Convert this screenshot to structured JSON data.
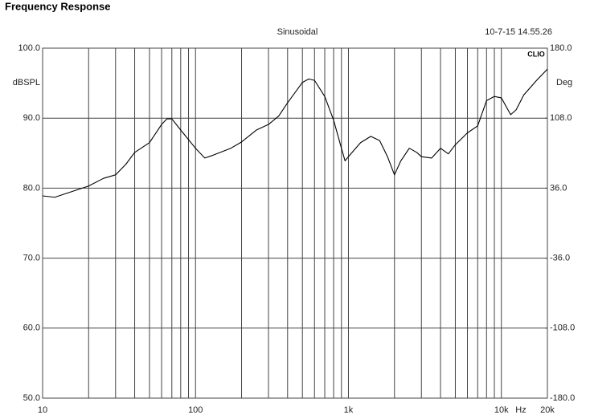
{
  "chart_data": {
    "type": "line",
    "title": "Frequency Response",
    "subtitle": "Sinusoidal",
    "timestamp": "10-7-15 14.55.26",
    "brand": "CLIO",
    "y_label": "dBSPL",
    "y2_label": "Deg",
    "x_unit": "Hz",
    "log_x": true,
    "grid": true,
    "xlim": [
      10,
      20000
    ],
    "ylim": [
      50,
      100
    ],
    "y2lim": [
      -180,
      180
    ],
    "xticks": [
      10,
      100,
      {
        "value": 1000,
        "label": "1k"
      },
      {
        "value": 10000,
        "label": "10k"
      },
      {
        "value": 20000,
        "label": "20k"
      }
    ],
    "xminor": [
      20,
      30,
      40,
      50,
      60,
      70,
      80,
      90,
      200,
      300,
      400,
      500,
      600,
      700,
      800,
      900,
      2000,
      3000,
      4000,
      5000,
      6000,
      7000,
      8000,
      9000
    ],
    "yticks": [
      {
        "value": 50,
        "label": "50.0"
      },
      {
        "value": 60,
        "label": "60.0"
      },
      {
        "value": 70,
        "label": "70.0"
      },
      {
        "value": 80,
        "label": "80.0"
      },
      {
        "value": 90,
        "label": "90.0"
      },
      {
        "value": 100,
        "label": "100.0"
      }
    ],
    "y2ticks": [
      {
        "value": -180,
        "label": "-180.0"
      },
      {
        "value": -108,
        "label": "-108.0"
      },
      {
        "value": -36,
        "label": "-36.0"
      },
      {
        "value": 36,
        "label": "36.0"
      },
      {
        "value": 108,
        "label": "108.0"
      },
      {
        "value": 180,
        "label": "180.0"
      }
    ],
    "x": [
      10,
      12,
      15,
      20,
      25,
      30,
      35,
      40,
      50,
      60,
      65,
      70,
      80,
      100,
      115,
      130,
      170,
      200,
      250,
      300,
      350,
      400,
      500,
      550,
      600,
      700,
      800,
      900,
      950,
      1000,
      1200,
      1400,
      1600,
      1800,
      2000,
      2200,
      2500,
      2800,
      3000,
      3500,
      4000,
      4500,
      5000,
      6000,
      7000,
      8000,
      9000,
      10000,
      11500,
      12500,
      14000,
      17000,
      20000
    ],
    "series": [
      {
        "name": "SPL",
        "color": "#000000",
        "values": [
          78.9,
          78.7,
          79.4,
          80.3,
          81.4,
          81.9,
          83.4,
          85.1,
          86.5,
          89.1,
          89.9,
          89.9,
          88.3,
          85.7,
          84.3,
          84.7,
          85.7,
          86.6,
          88.3,
          89.1,
          90.3,
          92.2,
          95.1,
          95.6,
          95.4,
          93.1,
          89.7,
          85.7,
          83.9,
          84.5,
          86.5,
          87.4,
          86.8,
          84.5,
          81.9,
          83.9,
          85.7,
          85.1,
          84.5,
          84.3,
          85.7,
          84.9,
          86.2,
          87.9,
          88.9,
          92.5,
          93.1,
          92.9,
          90.5,
          91.2,
          93.3,
          95.4,
          97.0
        ]
      }
    ]
  }
}
